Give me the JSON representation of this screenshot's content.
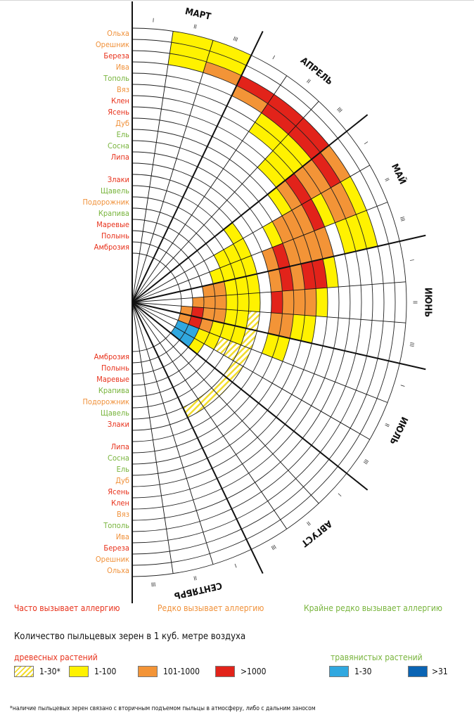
{
  "chart_data": {
    "type": "radial-calendar",
    "months": [
      "МАРТ",
      "АПРЕЛЬ",
      "МАЙ",
      "ИЮНЬ",
      "ИЮЛЬ",
      "АВГУСТ",
      "СЕНТЯБРЬ"
    ],
    "decades": [
      "I",
      "II",
      "III"
    ],
    "tree_plants": [
      {
        "name": "Ольха",
        "allergy": "rare"
      },
      {
        "name": "Орешник",
        "allergy": "rare"
      },
      {
        "name": "Береза",
        "allergy": "frequent"
      },
      {
        "name": "Ива",
        "allergy": "rare"
      },
      {
        "name": "Тополь",
        "allergy": "very_rare"
      },
      {
        "name": "Вяз",
        "allergy": "rare"
      },
      {
        "name": "Клен",
        "allergy": "frequent"
      },
      {
        "name": "Ясень",
        "allergy": "frequent"
      },
      {
        "name": "Дуб",
        "allergy": "rare"
      },
      {
        "name": "Ель",
        "allergy": "very_rare"
      },
      {
        "name": "Сосна",
        "allergy": "very_rare"
      },
      {
        "name": "Липа",
        "allergy": "frequent"
      }
    ],
    "herb_plants": [
      {
        "name": "Злаки",
        "allergy": "frequent"
      },
      {
        "name": "Щавель",
        "allergy": "very_rare"
      },
      {
        "name": "Подорожник",
        "allergy": "rare"
      },
      {
        "name": "Крапива",
        "allergy": "very_rare"
      },
      {
        "name": "Маревые",
        "allergy": "frequent"
      },
      {
        "name": "Полынь",
        "allergy": "frequent"
      },
      {
        "name": "Амброзия",
        "allergy": "frequent"
      }
    ],
    "tree_pollen": [
      {
        "plant": "Ольха",
        "levels": [
          "1-100",
          "1-100"
        ],
        "start_decade": 2
      },
      {
        "plant": "Орешник",
        "levels": [
          "1-100",
          "1-100"
        ],
        "start_decade": 2
      },
      {
        "plant": "Береза",
        "levels": [
          "1-100",
          "101-1000",
          ">1000",
          ">1000",
          ">1000",
          "101-1000",
          "1-100",
          "1-100"
        ],
        "start_decade": 2
      },
      {
        "plant": "Ива",
        "levels": [
          "101-1000",
          ">1000",
          ">1000",
          ">1000",
          "101-1000",
          "1-100"
        ],
        "start_decade": 4
      },
      {
        "plant": "Тополь",
        "levels": [
          "1-100",
          "1-100",
          "101-1000",
          "101-1000",
          "1-100"
        ],
        "start_decade": 5
      },
      {
        "plant": "Вяз",
        "levels": [
          "1-100",
          "1-100",
          "101-1000",
          "1-100"
        ],
        "start_decade": 5
      },
      {
        "plant": "Клен",
        "levels": [
          "1-100",
          ">1000",
          ">1000",
          "101-1000",
          "1-100"
        ],
        "start_decade": 6
      },
      {
        "plant": "Ясень",
        "levels": [
          "1-100",
          "101-1000",
          "101-1000",
          "101-1000",
          ">1000",
          "1-100"
        ],
        "start_decade": 6
      },
      {
        "plant": "Дуб",
        "levels": [
          "1-100",
          "101-1000",
          "101-1000",
          ">1000",
          "101-1000",
          "1-100"
        ],
        "start_decade": 7
      },
      {
        "plant": "Ель",
        "levels": [
          "101-1000",
          "101-1000",
          "101-1000",
          "101-1000",
          "1-100"
        ],
        "start_decade": 8
      },
      {
        "plant": "Сосна",
        "levels": [
          "1-100",
          ">1000",
          ">1000",
          "101-1000",
          "101-1000",
          "1-100"
        ],
        "start_decade": 8
      },
      {
        "plant": "Липа",
        "levels": [
          "101-1000",
          "101-1000",
          ">1000",
          "101-1000",
          "1-100"
        ],
        "start_decade": 9
      }
    ],
    "herb_pollen": [
      {
        "plant": "Злаки",
        "levels": [
          "1-100",
          "1-100",
          "1-100",
          "1-100",
          "1-100",
          "1-30*",
          "1-30*",
          "1-30*",
          "1-30*",
          "1-30*",
          "1-30*",
          "1-30*"
        ],
        "start_decade": 7
      },
      {
        "plant": "Щавель",
        "levels": [
          "1-100",
          "1-100",
          "1-100",
          "1-100",
          "1-100",
          "1-100",
          "1-30*"
        ],
        "start_decade": 8
      },
      {
        "plant": "Подорожник",
        "levels": [
          "1-100",
          "1-100",
          "1-100",
          "1-100",
          "1-100",
          "1-100",
          "1-30*"
        ],
        "start_decade": 8
      },
      {
        "plant": "Крапива",
        "levels": [
          "1-100",
          "101-1000",
          "101-1000",
          "101-1000",
          "1-100",
          "1-100"
        ],
        "start_decade": 9
      },
      {
        "plant": "Маревые",
        "levels": [
          "101-1000",
          "101-1000",
          "101-1000",
          "101-1000",
          "1-100",
          "1-100"
        ],
        "start_decade": 10
      },
      {
        "plant": "Полынь",
        "levels": [
          "101-1000",
          ">1000",
          ">1000",
          "1-30",
          "1-30"
        ],
        "start_decade": 11
      },
      {
        "plant": "Амброзия",
        "levels": [
          "101-1000",
          "101-1000",
          "1-30",
          "1-30"
        ],
        "start_decade": 12
      }
    ],
    "levels_tree": [
      "1-30*",
      "1-100",
      "101-1000",
      ">1000"
    ],
    "levels_herb": [
      "1-30",
      ">31"
    ]
  },
  "legend": {
    "cat_frequent": "Часто вызывает аллергию",
    "cat_rare": "Редко вызывает аллергию",
    "cat_very_rare": "Крайне редко вызывает аллергию",
    "title": "Количество пыльцевых зерен в 1 куб. метре воздуха",
    "tree_title": "древесных растений",
    "herb_title": "травянистых растений",
    "tree_items": [
      "1-30*",
      "1-100",
      "101-1000",
      ">1000"
    ],
    "herb_items": [
      "1-30",
      ">31"
    ],
    "footnote": "*наличие пыльцевых зерен связано с вторичным подъемом пыльцы в атмосферу, либо с дальним заносом"
  },
  "colors": {
    "frequent": "#e8321c",
    "rare": "#f0913a",
    "very_rare": "#78b43c",
    "yellow": "#fff200",
    "orange": "#f39437",
    "red": "#e2231a",
    "light_blue": "#30a8e0",
    "dark_blue": "#0a64b4",
    "hatch": "#f2dc2c"
  }
}
